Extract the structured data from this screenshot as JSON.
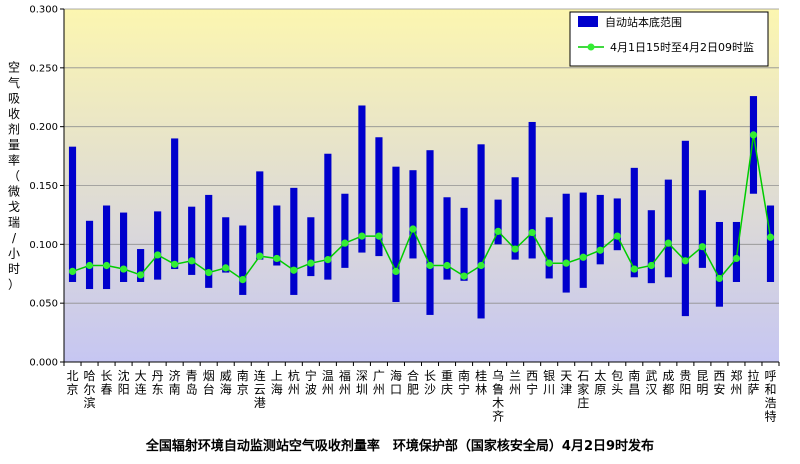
{
  "chart_data": {
    "type": "bar",
    "title": "全国辐射环境自动监测站空气吸收剂量率　环境保护部（国家核安全局）4月2日9时发布",
    "ylabel": "空气吸收剂量率（微戈瑞/小时）",
    "xlabel": "",
    "ylim": [
      0,
      0.3
    ],
    "yticks": [
      "0.000",
      "0.050",
      "0.100",
      "0.150",
      "0.200",
      "0.250",
      "0.300"
    ],
    "legend_position": "top-right",
    "categories": [
      "北京",
      "哈尔滨",
      "长春",
      "沈阳",
      "大连",
      "丹东",
      "济南",
      "青岛",
      "烟台",
      "威海",
      "南京",
      "连云港",
      "上海",
      "杭州",
      "宁波",
      "温州",
      "福州",
      "深圳",
      "广州",
      "海口",
      "合肥",
      "长沙",
      "重庆",
      "南宁",
      "桂林",
      "乌鲁木齐",
      "兰州",
      "西宁",
      "银川",
      "天津",
      "石家庄",
      "太原",
      "包头",
      "南昌",
      "武汉",
      "成都",
      "贵阳",
      "昆明",
      "西安",
      "郑州",
      "拉萨",
      "呼和浩特"
    ],
    "series": [
      {
        "name": "自动站本底范围",
        "kind": "floating-bar",
        "low": [
          0.068,
          0.062,
          0.062,
          0.068,
          0.068,
          0.07,
          0.079,
          0.074,
          0.063,
          0.076,
          0.057,
          0.087,
          0.082,
          0.057,
          0.073,
          0.07,
          0.08,
          0.093,
          0.09,
          0.051,
          0.088,
          0.04,
          0.07,
          0.069,
          0.037,
          0.1,
          0.087,
          0.088,
          0.071,
          0.059,
          0.063,
          0.083,
          0.095,
          0.072,
          0.067,
          0.072,
          0.039,
          0.08,
          0.047,
          0.068,
          0.143,
          0.068
        ],
        "high": [
          0.183,
          0.12,
          0.133,
          0.127,
          0.096,
          0.128,
          0.19,
          0.132,
          0.142,
          0.123,
          0.116,
          0.162,
          0.133,
          0.148,
          0.123,
          0.177,
          0.143,
          0.218,
          0.191,
          0.166,
          0.163,
          0.18,
          0.14,
          0.131,
          0.185,
          0.138,
          0.157,
          0.204,
          0.123,
          0.143,
          0.144,
          0.142,
          0.139,
          0.165,
          0.129,
          0.155,
          0.188,
          0.146,
          0.119,
          0.119,
          0.226,
          0.133
        ]
      },
      {
        "name": "4月1日15时至4月2日09时监",
        "kind": "line",
        "values": [
          0.077,
          0.082,
          0.082,
          0.079,
          0.074,
          0.091,
          0.083,
          0.086,
          0.076,
          0.08,
          0.07,
          0.09,
          0.088,
          0.078,
          0.084,
          0.087,
          0.101,
          0.107,
          0.107,
          0.077,
          0.113,
          0.082,
          0.082,
          0.073,
          0.082,
          0.111,
          0.096,
          0.11,
          0.084,
          0.084,
          0.089,
          0.095,
          0.107,
          0.079,
          0.082,
          0.101,
          0.086,
          0.098,
          0.071,
          0.088,
          0.193,
          0.106
        ]
      }
    ]
  },
  "colors": {
    "bar": "#0000cc",
    "line": "#00cc00",
    "marker": "#33ee33",
    "grad_top": "#fcf6b0",
    "grad_bottom": "#c6c6f2"
  }
}
